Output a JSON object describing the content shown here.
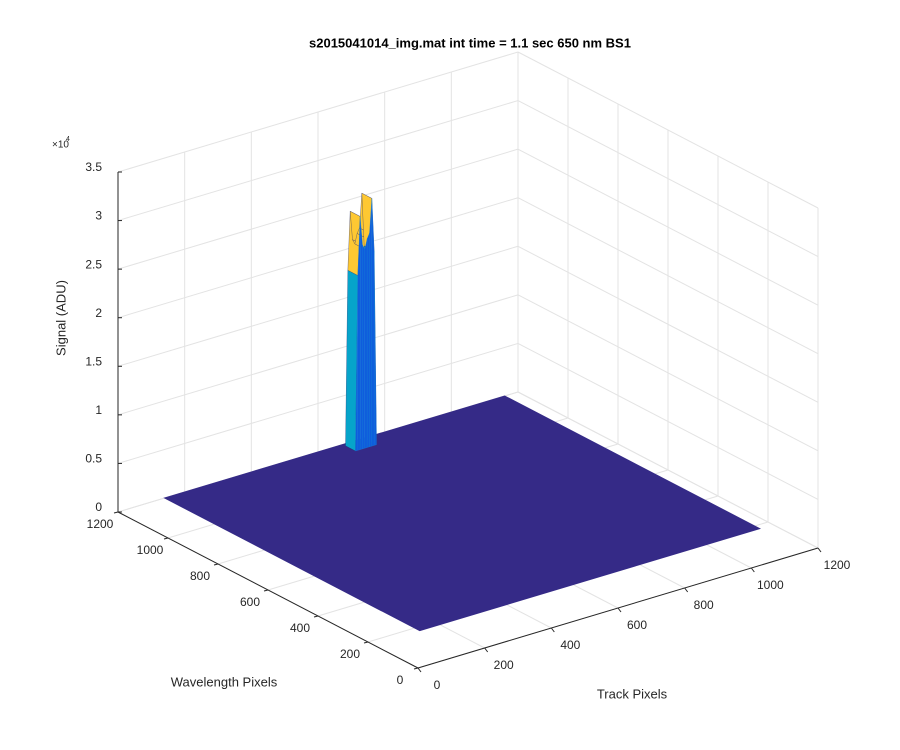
{
  "chart_data": {
    "type": "surface3d",
    "title": "s2015041014_img.mat int time = 1.1 sec  650 nm BS1",
    "xlabel": "Track Pixels",
    "ylabel": "Wavelength Pixels",
    "zlabel": "Signal (ADU)",
    "z_multiplier": "×10",
    "z_multiplier_power": "4",
    "xlim": [
      0,
      1200
    ],
    "ylim": [
      0,
      1200
    ],
    "zlim": [
      0,
      35000
    ],
    "xticks": [
      0,
      200,
      400,
      600,
      800,
      1000,
      1200
    ],
    "yticks": [
      0,
      200,
      400,
      600,
      800,
      1000,
      1200
    ],
    "zticks": [
      0,
      {
        "value": 5000,
        "label": "0.5"
      },
      {
        "value": 10000,
        "label": "1"
      },
      {
        "value": 15000,
        "label": "1.5"
      },
      {
        "value": 20000,
        "label": "2"
      },
      {
        "value": 25000,
        "label": "2.5"
      },
      {
        "value": 30000,
        "label": "3"
      },
      {
        "value": 35000,
        "label": "3.5"
      }
    ],
    "grid": true,
    "colormap": [
      "#352a87",
      "#0f5cdd",
      "#1481d6",
      "#06a4ca",
      "#2eb7a4",
      "#87bf77",
      "#d1bb59",
      "#fec832",
      "#f9fb0e"
    ],
    "surface": {
      "base_level": 0,
      "x_range": [
        140,
        1160
      ],
      "y_range": [
        180,
        1200
      ],
      "peak_y": [
        1150,
        1190
      ],
      "peak_x": [
        675,
        682,
        689,
        696,
        703,
        710,
        717,
        724,
        731,
        738
      ],
      "peak_values": [
        0,
        18000,
        24000,
        21000,
        20500,
        21500,
        22000,
        25500,
        20000,
        0
      ]
    }
  }
}
